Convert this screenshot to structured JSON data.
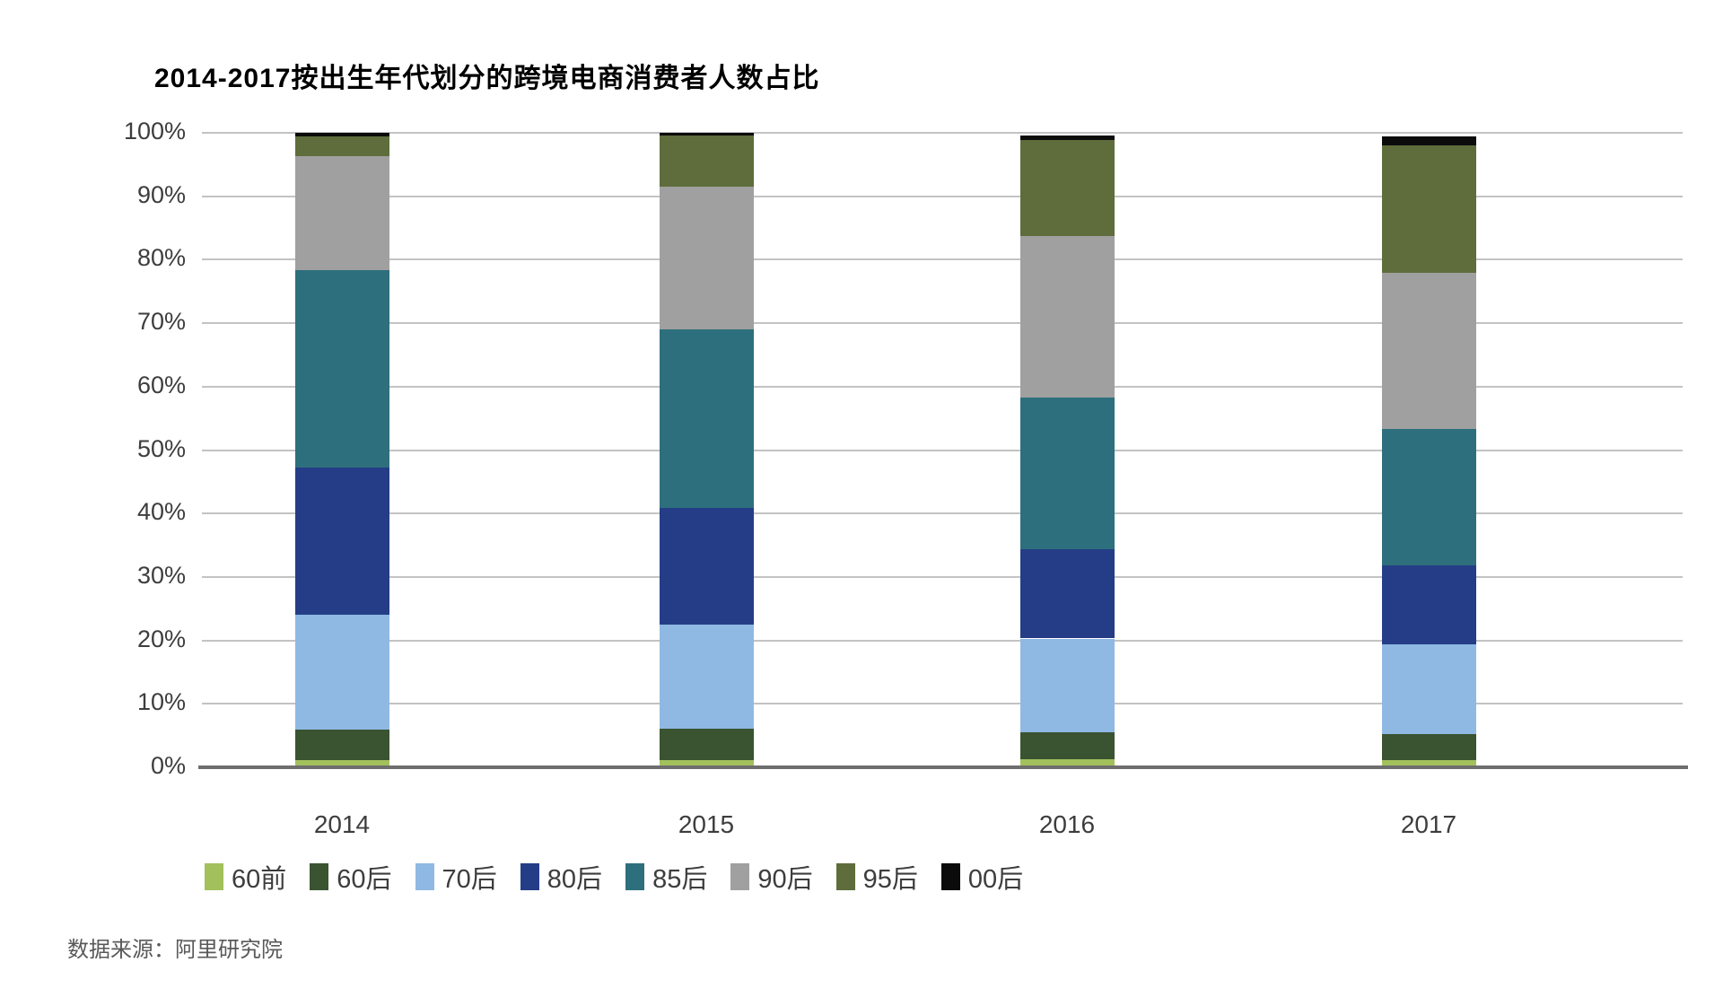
{
  "title": "2014-2017按出生年代划分的跨境电商消费者人数占比",
  "source": "数据来源：阿里研究院",
  "chart_data": {
    "type": "bar",
    "stacked": true,
    "percent": true,
    "title": "2014-2017按出生年代划分的跨境电商消费者人数占比",
    "categories": [
      "2014",
      "2015",
      "2016",
      "2017"
    ],
    "series": [
      {
        "name": "60前",
        "color": "#a2c05c",
        "values": [
          1.2,
          1.2,
          1.3,
          1.2
        ]
      },
      {
        "name": "60后",
        "color": "#3a5331",
        "values": [
          4.8,
          4.9,
          4.2,
          4.0
        ]
      },
      {
        "name": "70后",
        "color": "#8fb9e3",
        "values": [
          18.0,
          16.4,
          14.8,
          14.2
        ]
      },
      {
        "name": "80后",
        "color": "#253d87",
        "values": [
          23.3,
          18.4,
          14.1,
          12.4
        ]
      },
      {
        "name": "85后",
        "color": "#2e6f7d",
        "values": [
          31.0,
          28.1,
          23.9,
          21.5
        ]
      },
      {
        "name": "90后",
        "color": "#a0a0a0",
        "values": [
          18.0,
          22.5,
          25.4,
          24.7
        ]
      },
      {
        "name": "95后",
        "color": "#5e6d3b",
        "values": [
          3.2,
          8.1,
          15.2,
          20.0
        ]
      },
      {
        "name": "00后",
        "color": "#0b0b0b",
        "values": [
          0.5,
          0.4,
          0.7,
          1.5
        ]
      }
    ],
    "xlabel": "",
    "ylabel": "",
    "ylim": [
      0,
      100
    ],
    "yticks": [
      "0%",
      "10%",
      "20%",
      "30%",
      "40%",
      "50%",
      "60%",
      "70%",
      "80%",
      "90%",
      "100%"
    ],
    "grid": true,
    "legend_position": "bottom"
  }
}
